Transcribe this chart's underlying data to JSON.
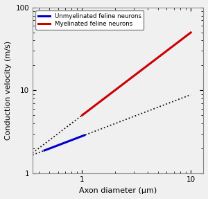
{
  "title": "",
  "xlabel": "Axon diameter (μm)",
  "ylabel": "Conduction velocity (m/s)",
  "xlim": [
    0.35,
    13
  ],
  "ylim": [
    1,
    100
  ],
  "legend_entries": [
    "Unmyelinated feline neurons",
    "Myelinated feline neurons"
  ],
  "blue_solid_d_range": [
    0.45,
    1.05
  ],
  "blue_coeff": 2.8,
  "blue_exponent": 0.5,
  "red_solid_d_range": [
    1.0,
    10.0
  ],
  "red_coeff": 5.0,
  "red_exponent": 1.0,
  "dotted_blue_d_start": 0.35,
  "dotted_blue_d_end": 10.0,
  "dotted_red_d_start": 0.35,
  "dotted_red_d_end": 1.05,
  "blue_color": "#0000cc",
  "red_color": "#cc0000",
  "dot_color": "#111111",
  "background_color": "#f0f0f0",
  "figsize": [
    3.0,
    2.87
  ],
  "dpi": 100
}
